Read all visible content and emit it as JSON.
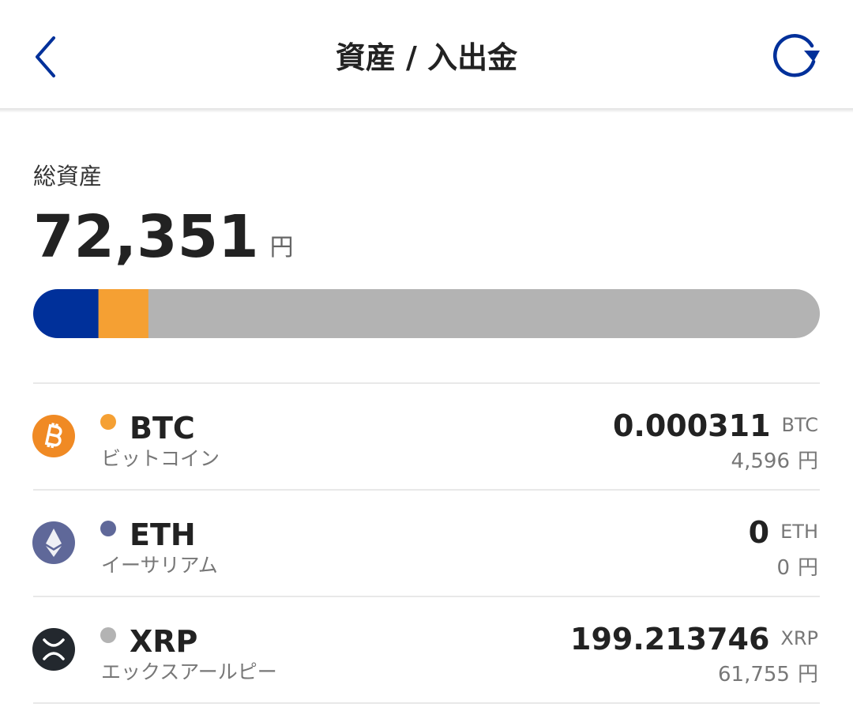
{
  "header": {
    "title": "資産 / 入出金"
  },
  "total": {
    "label": "総資産",
    "amount": "72,351",
    "unit": "円"
  },
  "allocation": {
    "segments": [
      {
        "color": "#00309a",
        "value": 6000
      },
      {
        "color": "#f5a033",
        "value": 4596
      },
      {
        "color": "#b3b3b3",
        "value": 61755
      }
    ]
  },
  "assets": [
    {
      "symbol": "BTC",
      "name": "ビットコイン",
      "color": "#f5a033",
      "amount": "0.000311",
      "unit": "BTC",
      "jpy": "4,596",
      "jpy_unit": "円"
    },
    {
      "symbol": "ETH",
      "name": "イーサリアム",
      "color": "#5f6899",
      "amount": "0",
      "unit": "ETH",
      "jpy": "0",
      "jpy_unit": "円"
    },
    {
      "symbol": "XRP",
      "name": "エックスアールピー",
      "color": "#b3b3b3",
      "amount": "199.213746",
      "unit": "XRP",
      "jpy": "61,755",
      "jpy_unit": "円"
    }
  ]
}
